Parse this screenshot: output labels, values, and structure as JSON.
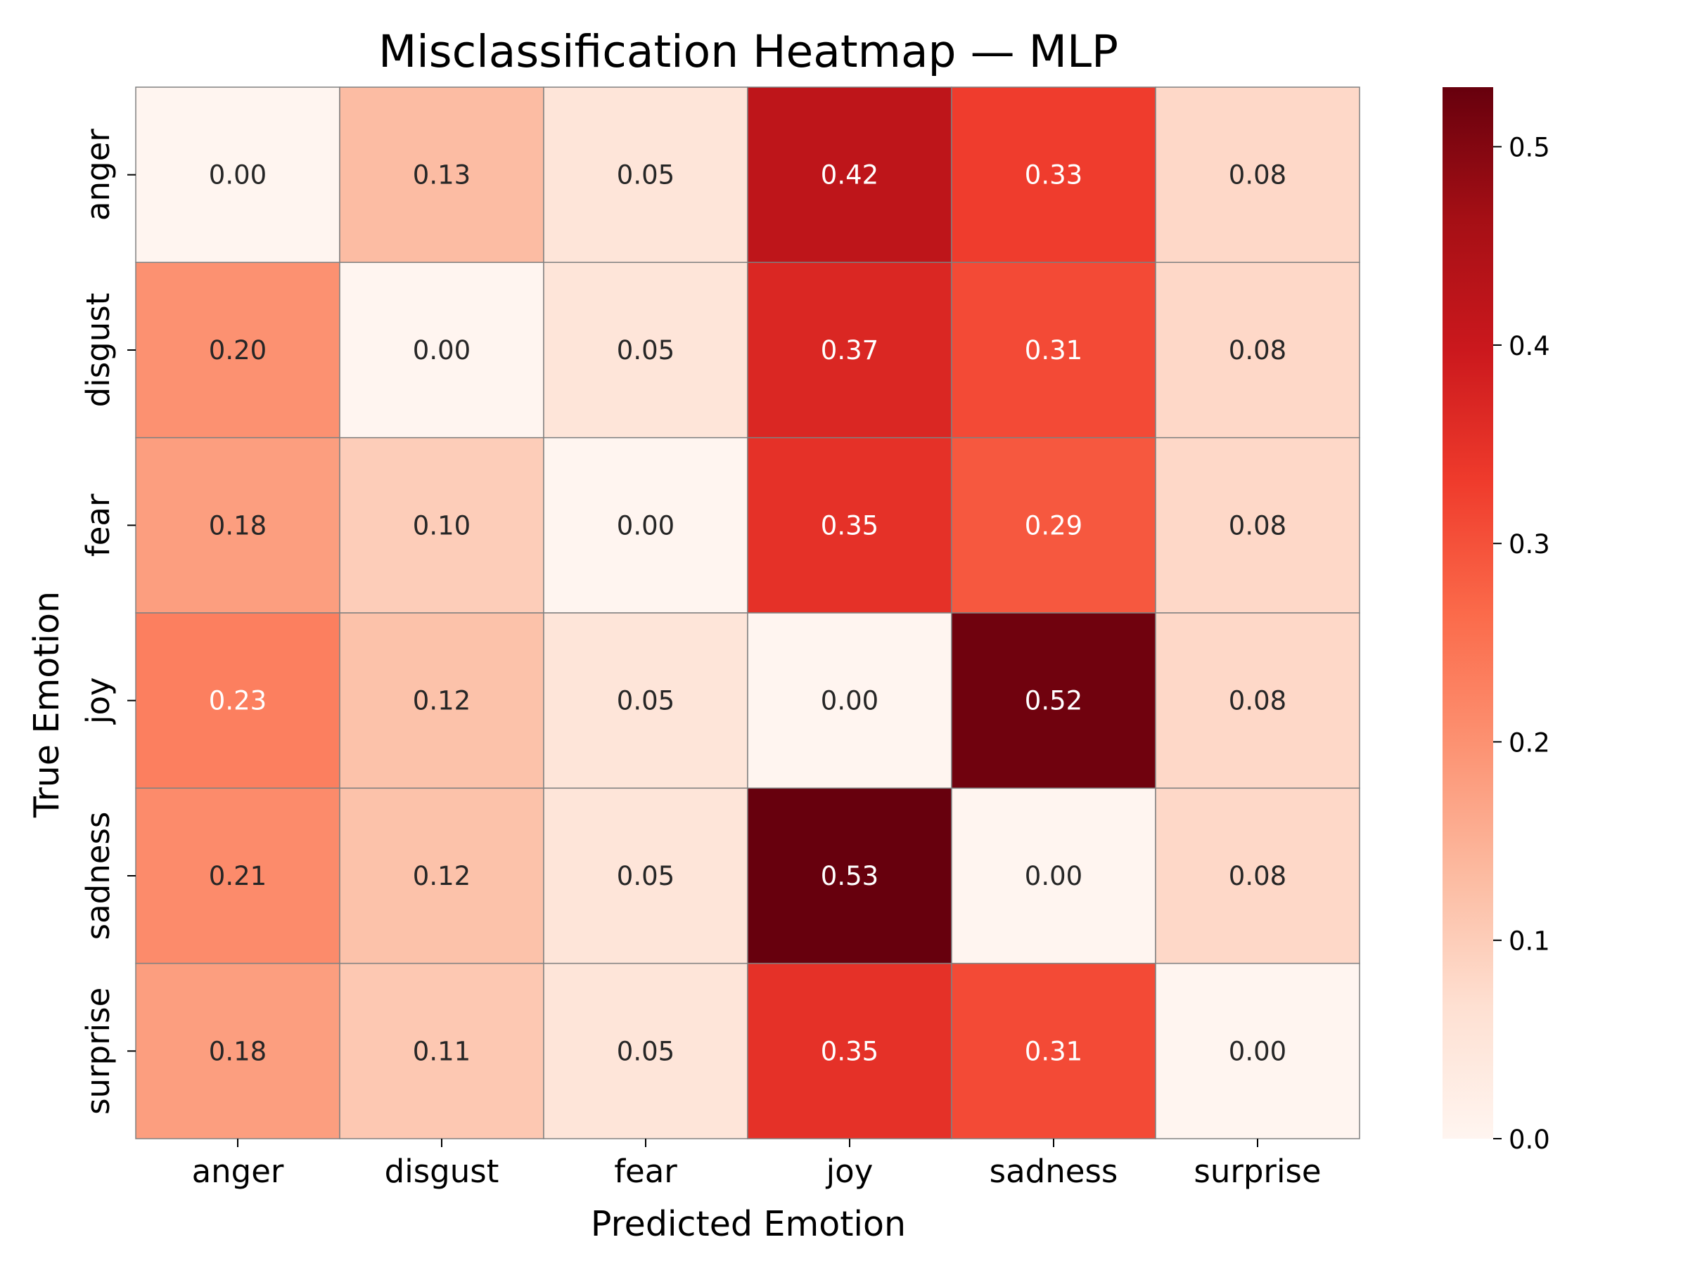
{
  "chart_data": {
    "type": "heatmap",
    "title": "Misclassification Heatmap — MLP",
    "xlabel": "Predicted Emotion",
    "ylabel": "True Emotion",
    "x_categories": [
      "anger",
      "disgust",
      "fear",
      "joy",
      "sadness",
      "surprise"
    ],
    "y_categories": [
      "anger",
      "disgust",
      "fear",
      "joy",
      "sadness",
      "surprise"
    ],
    "values": [
      [
        0.0,
        0.13,
        0.05,
        0.42,
        0.33,
        0.08
      ],
      [
        0.2,
        0.0,
        0.05,
        0.37,
        0.31,
        0.08
      ],
      [
        0.18,
        0.1,
        0.0,
        0.35,
        0.29,
        0.08
      ],
      [
        0.23,
        0.12,
        0.05,
        0.0,
        0.52,
        0.08
      ],
      [
        0.21,
        0.12,
        0.05,
        0.53,
        0.0,
        0.08
      ],
      [
        0.18,
        0.11,
        0.05,
        0.35,
        0.31,
        0.0
      ]
    ],
    "value_format": "0.00",
    "colorscale": "Reds",
    "color_range": [
      0.0,
      0.53
    ],
    "colorbar_ticks": [
      "0.0",
      "0.1",
      "0.2",
      "0.3",
      "0.4",
      "0.5"
    ],
    "colorbar_tick_values": [
      0.0,
      0.1,
      0.2,
      0.3,
      0.4,
      0.5
    ],
    "colors": {
      "cell_border": "#808080",
      "text_dark": "#262626",
      "text_light": "#ffffff",
      "axis": "#000000"
    }
  }
}
